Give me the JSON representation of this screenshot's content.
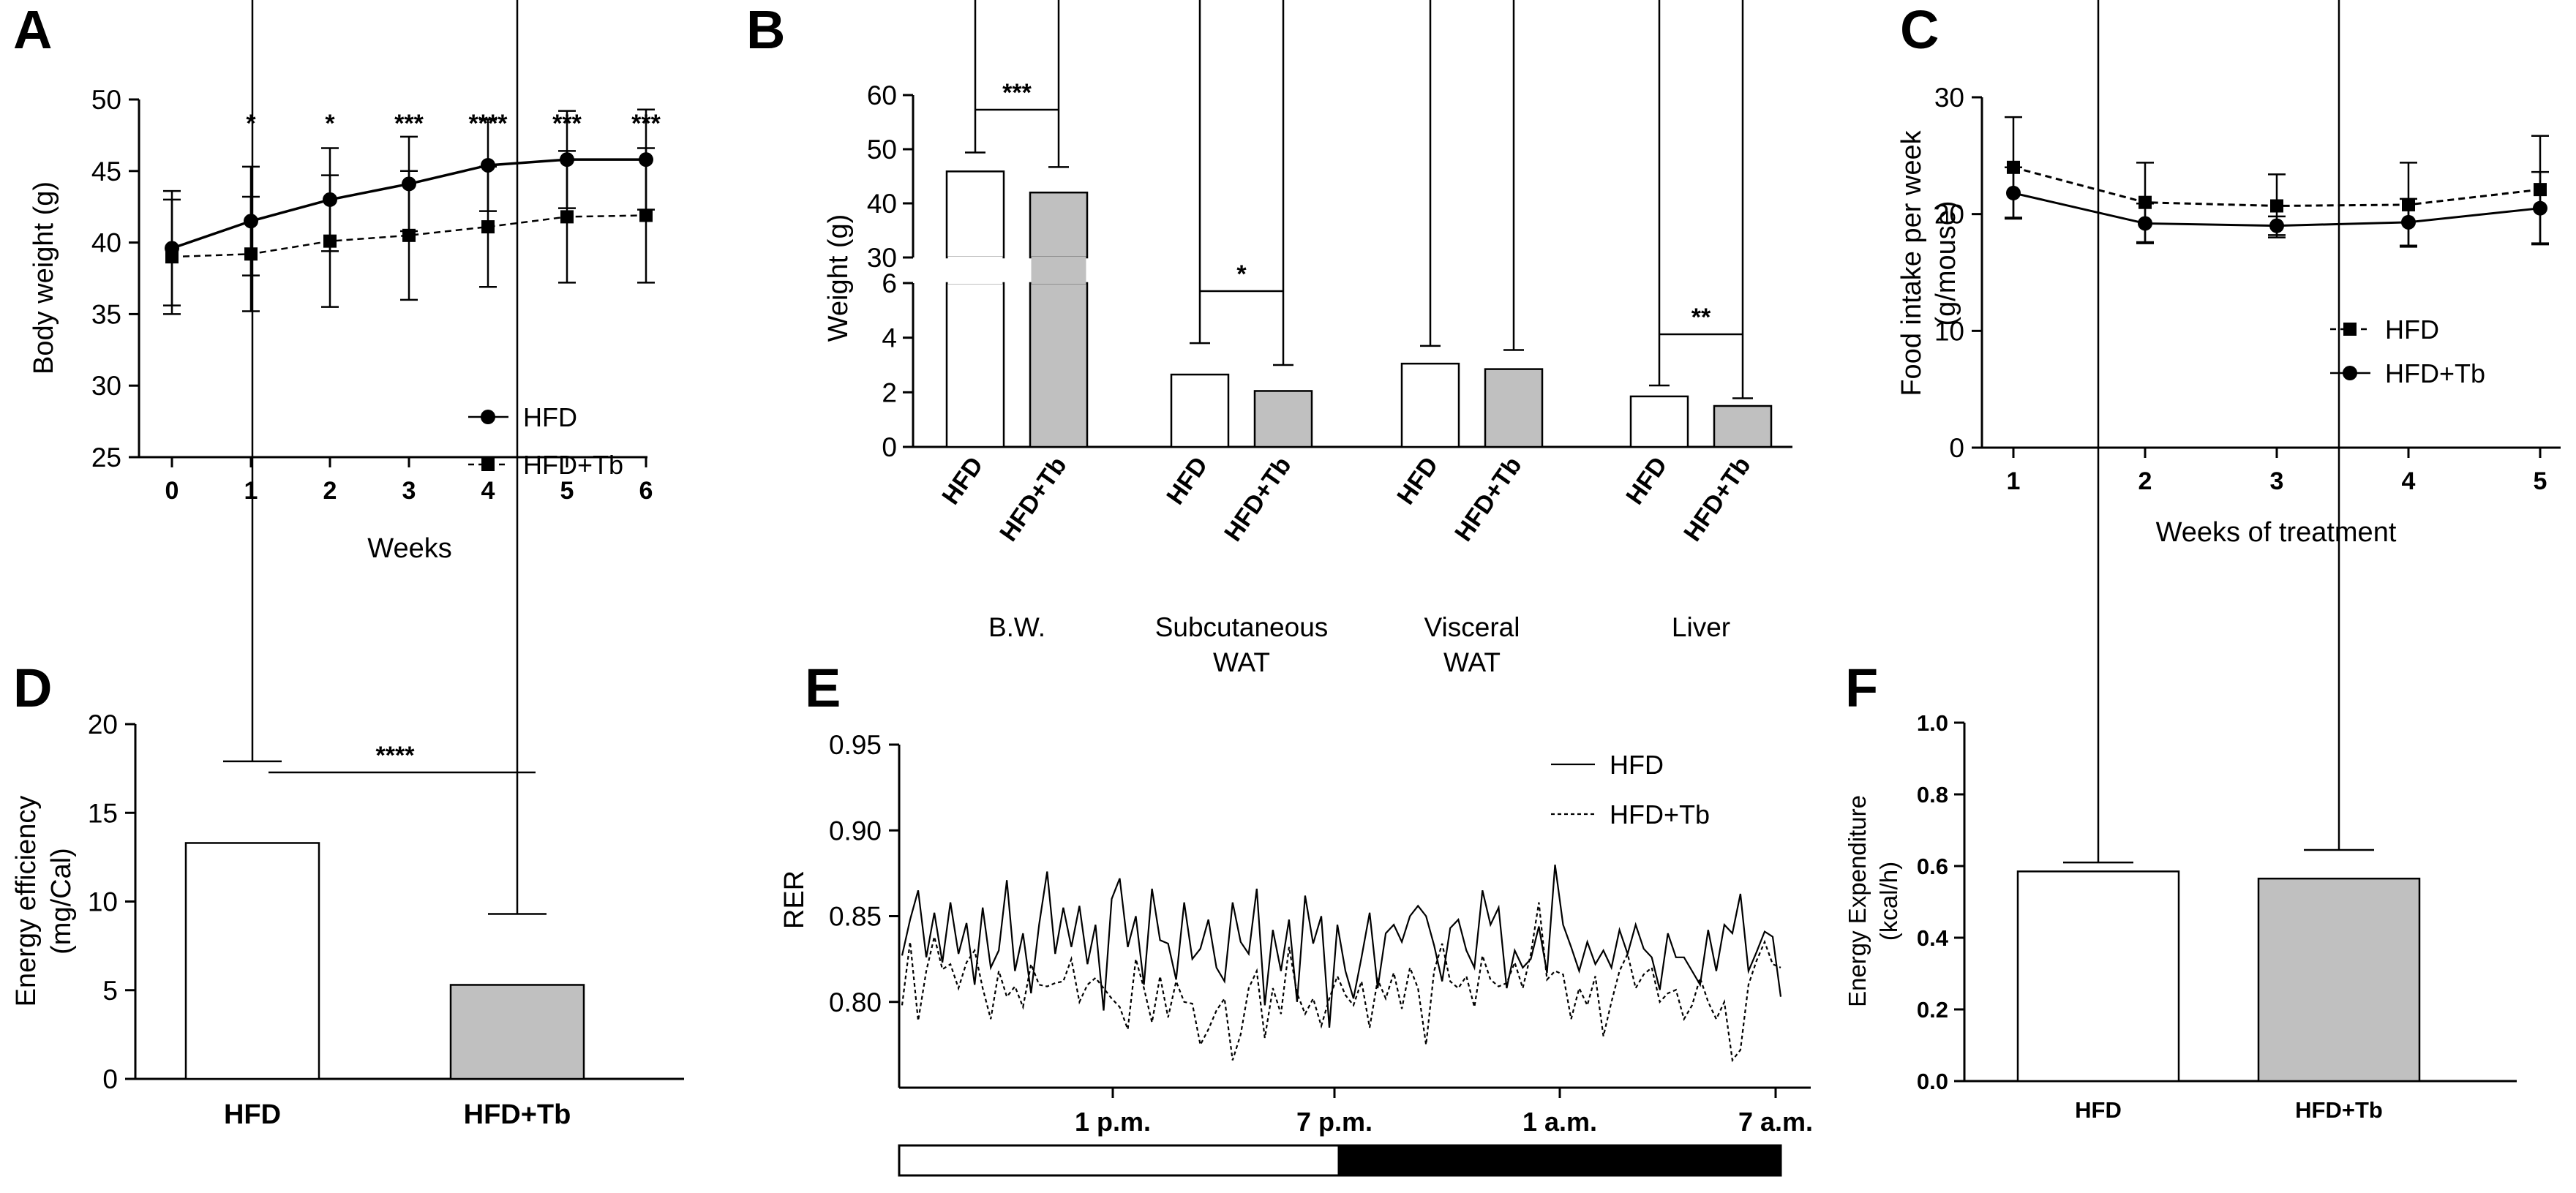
{
  "chart_data": [
    {
      "panel": "A",
      "type": "line",
      "xlabel": "Weeks",
      "ylabel": "Body weight (g)",
      "ylim": [
        25,
        50
      ],
      "yticks": [
        "25",
        "30",
        "35",
        "40",
        "45",
        "50"
      ],
      "xticks": [
        "0",
        "1",
        "2",
        "3",
        "4",
        "5",
        "6"
      ],
      "x": [
        0,
        1,
        2,
        3,
        4,
        5,
        6
      ],
      "series": [
        {
          "name": "HFD",
          "marker": "circle",
          "line": "solid",
          "values": [
            39.6,
            41.5,
            43.0,
            44.1,
            45.4,
            45.8,
            45.8
          ],
          "err": [
            4.0,
            3.8,
            3.6,
            3.3,
            3.2,
            3.4,
            3.5
          ]
        },
        {
          "name": "HFD+Tb",
          "marker": "square",
          "line": "dashed",
          "values": [
            39.0,
            39.2,
            40.1,
            40.5,
            41.1,
            41.8,
            41.9
          ],
          "err": [
            4.0,
            4.0,
            4.6,
            4.5,
            4.2,
            4.6,
            4.7
          ]
        }
      ],
      "significance": [
        "",
        "*",
        "*",
        "***",
        "****",
        "***",
        "***"
      ]
    },
    {
      "panel": "B",
      "type": "bar",
      "ylabel": "Weight (g)",
      "yticks_upper": [
        "30",
        "40",
        "50",
        "60"
      ],
      "yticks_lower": [
        "0",
        "2",
        "4",
        "6"
      ],
      "groups": [
        {
          "label": "B.W.",
          "label2": "",
          "bars": [
            "HFD",
            "HFD+Tb"
          ],
          "values": [
            45.9,
            42.0
          ],
          "err": [
            3.5,
            4.7
          ],
          "sig": "***"
        },
        {
          "label": "Subcutaneous",
          "label2": "WAT",
          "bars": [
            "HFD",
            "HFD+Tb"
          ],
          "values": [
            2.65,
            2.05
          ],
          "err": [
            1.15,
            0.95
          ],
          "sig": "*"
        },
        {
          "label": "Visceral",
          "label2": "WAT",
          "bars": [
            "HFD",
            "HFD+Tb"
          ],
          "values": [
            3.05,
            2.85
          ],
          "err": [
            0.65,
            0.7
          ],
          "sig": ""
        },
        {
          "label": "Liver",
          "label2": "",
          "bars": [
            "HFD",
            "HFD+Tb"
          ],
          "values": [
            1.85,
            1.5
          ],
          "err": [
            0.4,
            0.28
          ],
          "sig": "**"
        }
      ]
    },
    {
      "panel": "C",
      "type": "line",
      "xlabel": "Weeks of treatment",
      "ylabel": "Food intake per week",
      "ylabel2": "(g/mouse)",
      "ylim": [
        0,
        30
      ],
      "yticks": [
        "0",
        "10",
        "20",
        "30"
      ],
      "xticks": [
        "1",
        "2",
        "3",
        "4",
        "5"
      ],
      "x": [
        1,
        2,
        3,
        4,
        5
      ],
      "series": [
        {
          "name": "HFD",
          "marker": "square",
          "line": "dashed",
          "values": [
            24.0,
            21.0,
            20.7,
            20.8,
            22.1
          ],
          "err": [
            4.3,
            3.4,
            2.7,
            3.6,
            4.6
          ]
        },
        {
          "name": "HFD+Tb",
          "marker": "circle",
          "line": "solid",
          "values": [
            21.8,
            19.2,
            19.0,
            19.3,
            20.5
          ],
          "err": [
            2.2,
            1.7,
            0.8,
            2.0,
            3.1
          ]
        }
      ]
    },
    {
      "panel": "D",
      "type": "bar",
      "ylabel": "Energy efficiency",
      "ylabel2": "(mg/Cal)",
      "ylim": [
        0,
        20
      ],
      "yticks": [
        "0",
        "5",
        "10",
        "15",
        "20"
      ],
      "categories": [
        "HFD",
        "HFD+Tb"
      ],
      "values": [
        13.3,
        5.3
      ],
      "err": [
        4.6,
        4.0
      ],
      "sig": "****"
    },
    {
      "panel": "E",
      "type": "line",
      "ylabel": "RER",
      "ylim": [
        0.75,
        0.95
      ],
      "yticks": [
        "0.80",
        "0.85",
        "0.90",
        "0.95"
      ],
      "xticks": [
        "1 p.m.",
        "7 p.m.",
        "1 a.m.",
        "7 a.m."
      ],
      "series": [
        {
          "name": "HFD",
          "line": "solid",
          "values": [
            0.827,
            0.848,
            0.865,
            0.826,
            0.852,
            0.823,
            0.858,
            0.828,
            0.846,
            0.81,
            0.855,
            0.82,
            0.83,
            0.871,
            0.818,
            0.84,
            0.805,
            0.845,
            0.876,
            0.828,
            0.855,
            0.832,
            0.856,
            0.822,
            0.845,
            0.795,
            0.86,
            0.872,
            0.832,
            0.85,
            0.81,
            0.866,
            0.836,
            0.834,
            0.813,
            0.858,
            0.825,
            0.831,
            0.848,
            0.82,
            0.812,
            0.858,
            0.835,
            0.828,
            0.866,
            0.798,
            0.842,
            0.818,
            0.848,
            0.8,
            0.862,
            0.834,
            0.85,
            0.785,
            0.845,
            0.818,
            0.802,
            0.826,
            0.852,
            0.808,
            0.84,
            0.845,
            0.835,
            0.85,
            0.856,
            0.85,
            0.833,
            0.812,
            0.843,
            0.848,
            0.83,
            0.82,
            0.865,
            0.845,
            0.855,
            0.808,
            0.83,
            0.82,
            0.825,
            0.844,
            0.817,
            0.88,
            0.845,
            0.832,
            0.818,
            0.835,
            0.822,
            0.83,
            0.82,
            0.842,
            0.828,
            0.845,
            0.831,
            0.826,
            0.807,
            0.84,
            0.826,
            0.826,
            0.818,
            0.81,
            0.842,
            0.818,
            0.845,
            0.84,
            0.863,
            0.818,
            0.829,
            0.841,
            0.838,
            0.803
          ]
        },
        {
          "name": "HFD+Tb",
          "line": "dashed",
          "values": [
            0.798,
            0.835,
            0.789,
            0.818,
            0.838,
            0.819,
            0.822,
            0.808,
            0.823,
            0.83,
            0.808,
            0.79,
            0.818,
            0.803,
            0.809,
            0.797,
            0.822,
            0.81,
            0.809,
            0.811,
            0.812,
            0.825,
            0.8,
            0.81,
            0.814,
            0.808,
            0.802,
            0.797,
            0.784,
            0.825,
            0.808,
            0.788,
            0.815,
            0.791,
            0.812,
            0.8,
            0.799,
            0.775,
            0.784,
            0.795,
            0.802,
            0.766,
            0.781,
            0.808,
            0.818,
            0.779,
            0.808,
            0.793,
            0.832,
            0.805,
            0.793,
            0.802,
            0.786,
            0.802,
            0.815,
            0.804,
            0.798,
            0.812,
            0.785,
            0.813,
            0.802,
            0.817,
            0.796,
            0.82,
            0.808,
            0.775,
            0.818,
            0.834,
            0.812,
            0.808,
            0.815,
            0.797,
            0.827,
            0.813,
            0.809,
            0.811,
            0.823,
            0.808,
            0.828,
            0.858,
            0.813,
            0.818,
            0.816,
            0.79,
            0.808,
            0.798,
            0.815,
            0.78,
            0.8,
            0.818,
            0.828,
            0.808,
            0.816,
            0.82,
            0.8,
            0.805,
            0.807,
            0.79,
            0.798,
            0.814,
            0.8,
            0.79,
            0.8,
            0.766,
            0.772,
            0.81,
            0.824,
            0.835,
            0.822,
            0.82
          ]
        }
      ],
      "light_dark_bar": [
        "light",
        "dark"
      ]
    },
    {
      "panel": "F",
      "type": "bar",
      "ylabel": "Energy Expenditure",
      "ylabel2": "(kcal/h)",
      "ylim": [
        0,
        1.0
      ],
      "yticks": [
        "0.0",
        "0.2",
        "0.4",
        "0.6",
        "0.8",
        "1.0"
      ],
      "categories": [
        "HFD",
        "HFD+Tb"
      ],
      "values": [
        0.585,
        0.565
      ],
      "err": [
        0.025,
        0.08
      ]
    }
  ],
  "panels": {
    "A": "A",
    "B": "B",
    "C": "C",
    "D": "D",
    "E": "E",
    "F": "F"
  },
  "colors": {
    "hfd_bar": "#ffffff",
    "tb_bar": "#c0c0c0",
    "ink": "#000000",
    "dark_phase": "#000000"
  }
}
